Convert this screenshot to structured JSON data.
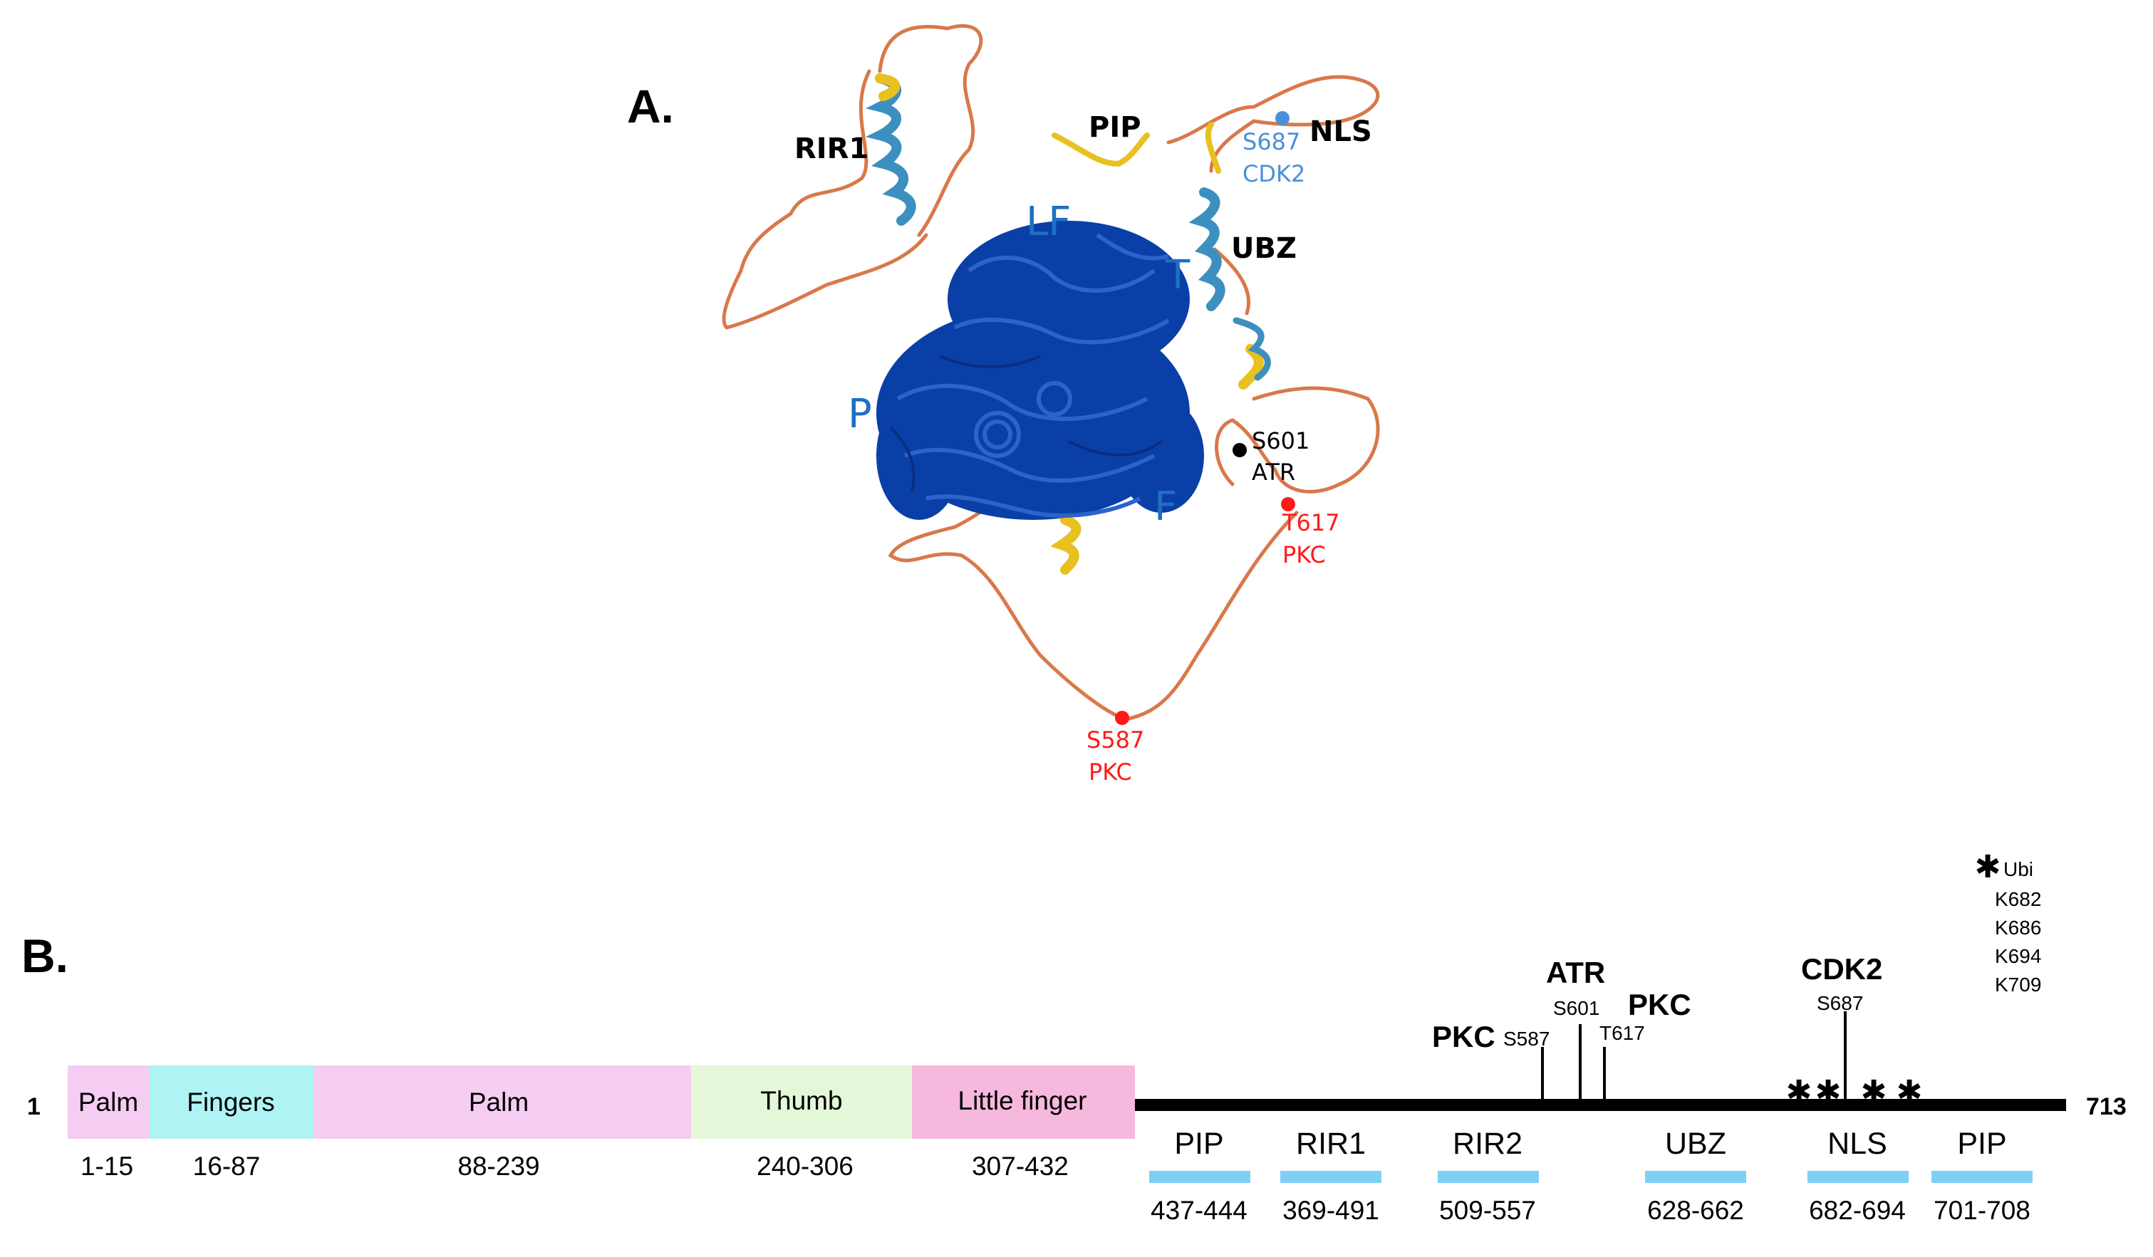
{
  "panel_a": {
    "label": "A.",
    "domain_labels": {
      "lf": "LF",
      "thumb": "T",
      "palm": "P",
      "fingers": "F",
      "rir1": "RIR1",
      "pip": "PIP",
      "nls": "NLS",
      "ubz": "UBZ"
    },
    "sites": [
      {
        "residue": "S687",
        "kinase": "CDK2",
        "color": "#4a90d9"
      },
      {
        "residue": "S601",
        "kinase": "ATR",
        "color": "#000000"
      },
      {
        "residue": "T617",
        "kinase": "PKC",
        "color": "#ff1a1a"
      },
      {
        "residue": "S587",
        "kinase": "PKC",
        "color": "#ff1a1a"
      }
    ],
    "colors": {
      "core": "#0b3fa8",
      "helix": "#3d8fbf",
      "helix_yellow": "#e8c020",
      "loop": "#d9784a",
      "label_blue": "#1f6fc2"
    }
  },
  "panel_b": {
    "label": "B.",
    "start": "1",
    "end": "713",
    "domains": [
      {
        "name": "Palm",
        "range": "1-15",
        "color": "#f5ccf2"
      },
      {
        "name": "Fingers",
        "range": "16-87",
        "color": "#aff3f5"
      },
      {
        "name": "Palm",
        "range": "88-239",
        "color": "#f5ccf2"
      },
      {
        "name": "Thumb",
        "range": "240-306",
        "color": "#e4f7d8"
      },
      {
        "name": "Little finger",
        "range": "307-432",
        "color": "#f7b8dd"
      }
    ],
    "motifs": [
      {
        "name": "PIP",
        "range": "437-444"
      },
      {
        "name": "RIR1",
        "range": "369-491"
      },
      {
        "name": "RIR2",
        "range": "509-557"
      },
      {
        "name": "UBZ",
        "range": "628-662"
      },
      {
        "name": "NLS",
        "range": "682-694"
      },
      {
        "name": "PIP",
        "range": "701-708"
      }
    ],
    "motif_bar_color": "#7fcff5",
    "phospho": [
      {
        "kinase": "PKC",
        "site": "S587"
      },
      {
        "kinase": "ATR",
        "site": "S601"
      },
      {
        "kinase": "PKC",
        "site": "T617"
      },
      {
        "kinase": "CDK2",
        "site": "S687"
      }
    ],
    "ubi_marker": "✱",
    "ubi": {
      "label": "Ubi",
      "sites": [
        "K682",
        "K686",
        "K694",
        "K709"
      ]
    },
    "asterisk": "✱"
  }
}
